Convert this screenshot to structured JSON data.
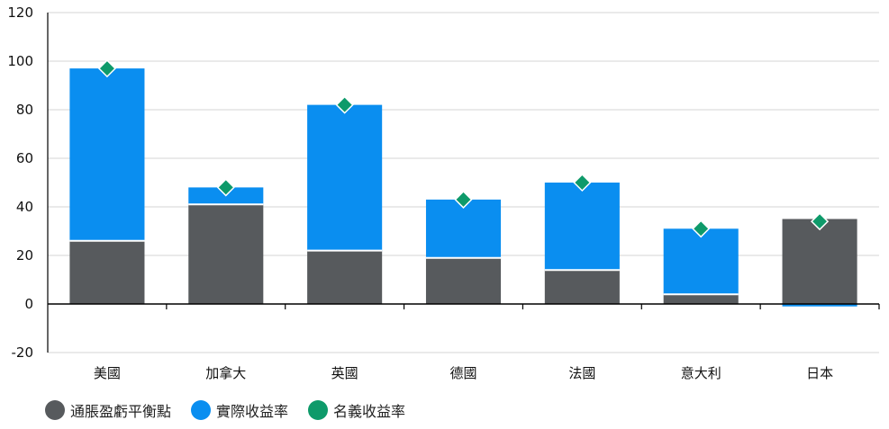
{
  "chart_data": {
    "type": "bar",
    "stacked": true,
    "categories": [
      "美國",
      "加拿大",
      "英國",
      "德國",
      "法國",
      "意大利",
      "日本"
    ],
    "series": [
      {
        "name": "通脹盈虧平衡點",
        "kind": "bar",
        "color": "#575a5d",
        "values": [
          26,
          41,
          22,
          19,
          14,
          4,
          35
        ]
      },
      {
        "name": "實際收益率",
        "kind": "bar",
        "color": "#0a8ef0",
        "values": [
          71,
          7,
          60,
          24,
          36,
          27,
          -1
        ]
      },
      {
        "name": "名義收益率",
        "kind": "marker",
        "color": "#0e9a6a",
        "values": [
          97,
          48,
          82,
          43,
          50,
          31,
          34
        ]
      }
    ],
    "ylim": [
      -20,
      120
    ],
    "yticks": [
      -20,
      0,
      20,
      40,
      60,
      80,
      100,
      120
    ],
    "grid": true,
    "legend_position": "bottom-left",
    "title": "",
    "xlabel": "",
    "ylabel": ""
  }
}
